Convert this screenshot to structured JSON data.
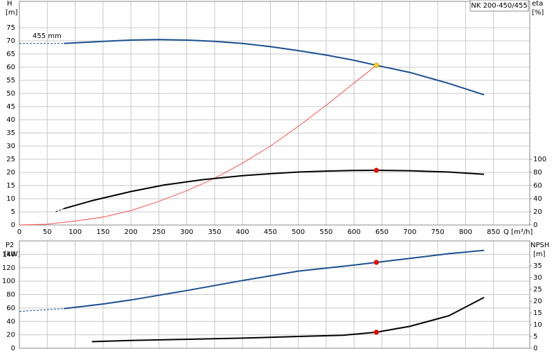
{
  "chart_data": [
    {
      "type": "line",
      "title": "NK 200-450/455",
      "ylabel": "H",
      "yunit": "[m]",
      "y2label": "eta",
      "y2unit": "[%]",
      "xlabel": "Q [m³/h]",
      "curve_label": "455 mm",
      "xlim": [
        0,
        915
      ],
      "xticks": [
        0,
        50,
        100,
        150,
        200,
        250,
        300,
        350,
        400,
        450,
        500,
        550,
        600,
        650,
        700,
        750,
        800,
        850
      ],
      "xtick_labels": true,
      "ylim": [
        0,
        85
      ],
      "yticks": [
        0,
        5,
        10,
        15,
        20,
        25,
        30,
        35,
        40,
        45,
        50,
        55,
        60,
        65,
        70,
        75
      ],
      "y2lim": [
        0,
        340
      ],
      "y2ticks": [
        0,
        20,
        40,
        60,
        80,
        100
      ],
      "grid": true,
      "series": [
        {
          "color": "#1a4f8f",
          "dashed": true,
          "width": 1,
          "x": [
            0,
            80
          ],
          "values": [
            69,
            69
          ]
        },
        {
          "color": "#1a4f8f",
          "dashed": false,
          "width": 2,
          "x": [
            80,
            150,
            200,
            250,
            300,
            350,
            400,
            450,
            500,
            550,
            600,
            640,
            700,
            750,
            770,
            833
          ],
          "values": [
            69,
            69.8,
            70.3,
            70.5,
            70.3,
            69.8,
            69,
            67.8,
            66.3,
            64.6,
            62.6,
            60.7,
            58,
            55,
            53.8,
            49.5
          ]
        },
        {
          "color": "#ff4d4d",
          "dashed": false,
          "width": 1,
          "x": [
            0,
            50,
            100,
            150,
            200,
            250,
            300,
            350,
            400,
            450,
            500,
            550,
            600,
            640
          ],
          "values": [
            0,
            0.3,
            1.5,
            3,
            5.5,
            9,
            13,
            17.8,
            23.5,
            30,
            37.5,
            45.5,
            54,
            60.7
          ]
        },
        {
          "color": "#000000",
          "dashed": true,
          "width": 1,
          "axis": "y2",
          "x": [
            65,
            80
          ],
          "values": [
            20,
            25
          ]
        },
        {
          "color": "#000000",
          "dashed": false,
          "width": 2,
          "axis": "y2",
          "x": [
            80,
            130,
            200,
            260,
            330,
            400,
            450,
            500,
            550,
            600,
            640,
            700,
            770,
            833
          ],
          "values": [
            25,
            37,
            51,
            61,
            69,
            75,
            78,
            80.5,
            82,
            83,
            83.2,
            82.5,
            80.5,
            77
          ]
        }
      ],
      "points": [
        {
          "x": 640,
          "y": 60.7,
          "color": "#ffd21f"
        },
        {
          "x": 640,
          "y": 83.2,
          "color": "#e8000b",
          "axis": "y2"
        }
      ]
    },
    {
      "type": "line",
      "ylabel": "P2",
      "yunit": "[kW]",
      "y2label": "NPSH",
      "y2unit": "[m]",
      "xlim": [
        0,
        915
      ],
      "xticks": [
        0,
        50,
        100,
        150,
        200,
        250,
        300,
        350,
        400,
        450,
        500,
        550,
        600,
        650,
        700,
        750,
        800,
        850
      ],
      "xtick_labels": false,
      "ylim": [
        0,
        160
      ],
      "yticks": [
        0,
        20,
        40,
        60,
        80,
        100,
        120,
        140
      ],
      "y2lim": [
        0,
        45.6
      ],
      "y2ticks": [
        0,
        5,
        10,
        15,
        20,
        25,
        30,
        35
      ],
      "grid": true,
      "series": [
        {
          "color": "#1a4f8f",
          "dashed": true,
          "width": 1,
          "x": [
            0,
            80
          ],
          "values": [
            55,
            59
          ]
        },
        {
          "color": "#1a4f8f",
          "dashed": false,
          "width": 2,
          "x": [
            80,
            150,
            200,
            300,
            400,
            500,
            600,
            640,
            700,
            770,
            833
          ],
          "values": [
            59,
            66,
            72,
            86,
            101,
            115,
            124,
            128,
            134,
            141,
            146
          ]
        },
        {
          "color": "#000000",
          "dashed": false,
          "width": 2,
          "axis": "y2",
          "x": [
            130,
            200,
            300,
            400,
            500,
            580,
            640,
            700,
            770,
            833
          ],
          "values": [
            2.8,
            3.3,
            3.8,
            4.3,
            5,
            5.5,
            6.8,
            9.3,
            13.8,
            21.6
          ]
        }
      ],
      "points": [
        {
          "x": 640,
          "y": 128,
          "color": "#e8000b"
        },
        {
          "x": 640,
          "y": 6.8,
          "color": "#e8000b",
          "axis": "y2"
        }
      ]
    }
  ]
}
